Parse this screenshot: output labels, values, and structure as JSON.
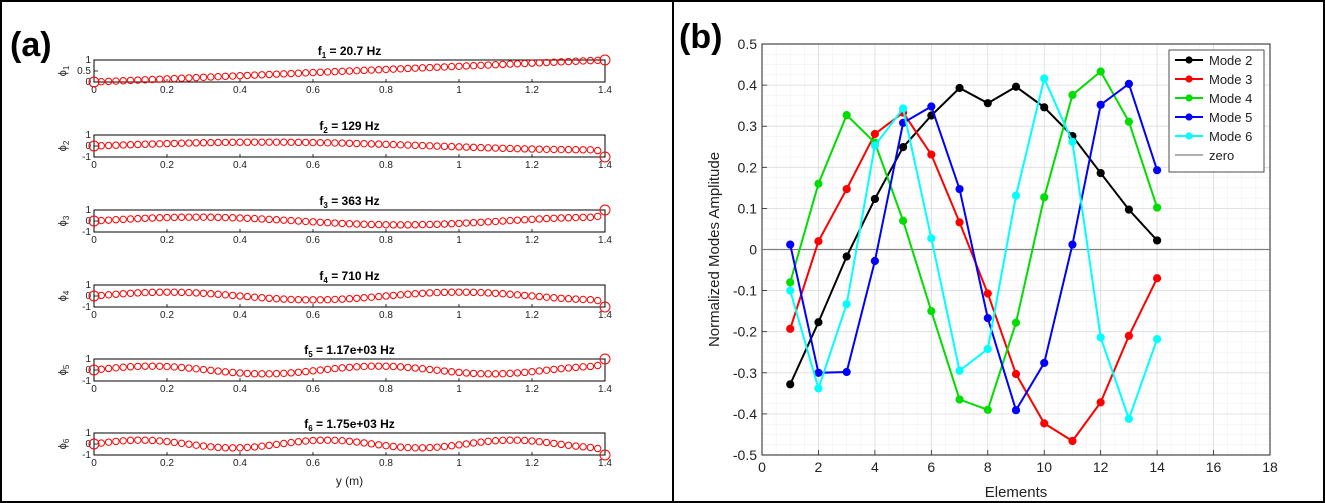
{
  "panels": {
    "a_label": "(a)",
    "b_label": "(b)"
  },
  "colors": {
    "mode2": "#000000",
    "mode3": "#ff0000",
    "mode4": "#00dd00",
    "mode5": "#0000ff",
    "mode6": "#00ffff",
    "zero": "#808080",
    "shape": "#ff0000"
  },
  "chart_data": [
    {
      "type": "line",
      "panel": "(a)",
      "description": "Beam mode shapes, six stacked subplots",
      "xlabel": "y (m)",
      "xlim": [
        0,
        1.4
      ],
      "xticks": [
        "0",
        "0.2",
        "0.4",
        "0.6",
        "0.8",
        "1",
        "1.2",
        "1.4"
      ],
      "subplots": [
        {
          "title_base": "f",
          "title_sub": "1",
          "title_rest": " = 20.7 Hz",
          "ylabel_base": "ϕ",
          "ylabel_sub": "1",
          "ylim": [
            0,
            1
          ],
          "yticks": [
            "0",
            "0.5",
            "1"
          ],
          "mode": 1,
          "end_values": [
            0,
            1
          ]
        },
        {
          "title_base": "f",
          "title_sub": "2",
          "title_rest": " = 129 Hz",
          "ylabel_base": "ϕ",
          "ylabel_sub": "2",
          "ylim": [
            -1,
            1
          ],
          "yticks": [
            "-1",
            "0",
            "1"
          ],
          "mode": 2,
          "end_values": [
            0,
            -1
          ]
        },
        {
          "title_base": "f",
          "title_sub": "3",
          "title_rest": " = 363 Hz",
          "ylabel_base": "ϕ",
          "ylabel_sub": "3",
          "ylim": [
            -1,
            1
          ],
          "yticks": [
            "-1",
            "0",
            "1"
          ],
          "mode": 3,
          "end_values": [
            0,
            1
          ]
        },
        {
          "title_base": "f",
          "title_sub": "4",
          "title_rest": " = 710 Hz",
          "ylabel_base": "ϕ",
          "ylabel_sub": "4",
          "ylim": [
            -1,
            1
          ],
          "yticks": [
            "-1",
            "0",
            "1"
          ],
          "mode": 4,
          "end_values": [
            0,
            -1
          ]
        },
        {
          "title_base": "f",
          "title_sub": "5",
          "title_rest": " = 1.17e+03 Hz",
          "ylabel_base": "ϕ",
          "ylabel_sub": "5",
          "ylim": [
            -1,
            1
          ],
          "yticks": [
            "-1",
            "0",
            "1"
          ],
          "mode": 5,
          "end_values": [
            0,
            1
          ]
        },
        {
          "title_base": "f",
          "title_sub": "6",
          "title_rest": " = 1.75e+03 Hz",
          "ylabel_base": "ϕ",
          "ylabel_sub": "6",
          "ylim": [
            -1,
            1
          ],
          "yticks": [
            "-1",
            "0",
            "1"
          ],
          "mode": 6,
          "end_values": [
            0,
            -1
          ]
        }
      ]
    },
    {
      "type": "line",
      "panel": "(b)",
      "xlabel": "Elements",
      "ylabel": "Normalized Modes Amplitude",
      "xlim": [
        0,
        18
      ],
      "ylim": [
        -0.5,
        0.5
      ],
      "xticks": [
        0,
        2,
        4,
        6,
        8,
        10,
        12,
        14,
        16,
        18
      ],
      "yticks": [
        -0.5,
        -0.4,
        -0.3,
        -0.2,
        -0.1,
        0,
        0.1,
        0.2,
        0.3,
        0.4,
        0.5
      ],
      "grid": true,
      "legend_position": "top-right",
      "x": [
        1,
        2,
        3,
        4,
        5,
        6,
        7,
        8,
        9,
        10,
        11,
        12,
        13,
        14
      ],
      "series": [
        {
          "name": "Mode 2",
          "color": "#000000",
          "values": [
            -0.328,
            -0.177,
            -0.017,
            0.123,
            0.249,
            0.326,
            0.393,
            0.356,
            0.396,
            0.346,
            0.276,
            0.186,
            0.097,
            0.022
          ]
        },
        {
          "name": "Mode 3",
          "color": "#ff0000",
          "values": [
            -0.193,
            0.02,
            0.147,
            0.281,
            0.333,
            0.231,
            0.066,
            -0.107,
            -0.303,
            -0.423,
            -0.466,
            -0.372,
            -0.21,
            -0.07
          ]
        },
        {
          "name": "Mode 4",
          "color": "#00dd00",
          "values": [
            -0.08,
            0.16,
            0.327,
            0.26,
            0.07,
            -0.15,
            -0.365,
            -0.39,
            -0.178,
            0.127,
            0.376,
            0.433,
            0.311,
            0.102
          ]
        },
        {
          "name": "Mode 5",
          "color": "#0000ff",
          "values": [
            0.012,
            -0.3,
            -0.298,
            -0.028,
            0.308,
            0.348,
            0.147,
            -0.167,
            -0.391,
            -0.276,
            0.012,
            0.352,
            0.403,
            0.193
          ]
        },
        {
          "name": "Mode 6",
          "color": "#00ffff",
          "values": [
            -0.1,
            -0.338,
            -0.133,
            0.253,
            0.343,
            0.027,
            -0.295,
            -0.242,
            0.131,
            0.416,
            0.262,
            -0.214,
            -0.412,
            -0.218
          ]
        }
      ],
      "zero_line": {
        "name": "zero",
        "value": 0
      }
    }
  ]
}
